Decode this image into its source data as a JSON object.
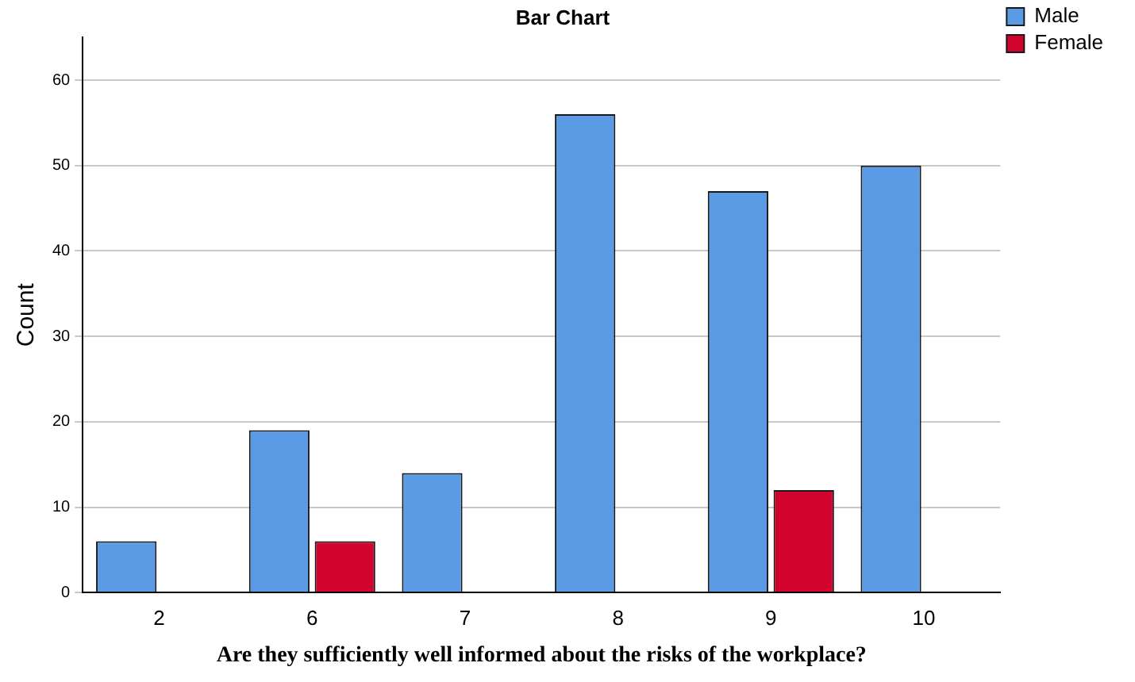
{
  "chart_data": {
    "type": "bar",
    "title": "Bar Chart",
    "xlabel": "Are they sufficiently well informed about the risks of the workplace?",
    "ylabel": "Count",
    "categories": [
      "2",
      "6",
      "7",
      "8",
      "9",
      "10"
    ],
    "series": [
      {
        "name": "Male",
        "color": "#5b9be6",
        "values": [
          6,
          19,
          14,
          56,
          47,
          50
        ]
      },
      {
        "name": "Female",
        "color": "#d2042d",
        "values": [
          null,
          6,
          null,
          null,
          12,
          null
        ]
      }
    ],
    "ylim": [
      0,
      65
    ],
    "yticks": [
      0,
      10,
      20,
      30,
      40,
      50,
      60
    ],
    "grid": "y",
    "legend": "top right"
  }
}
